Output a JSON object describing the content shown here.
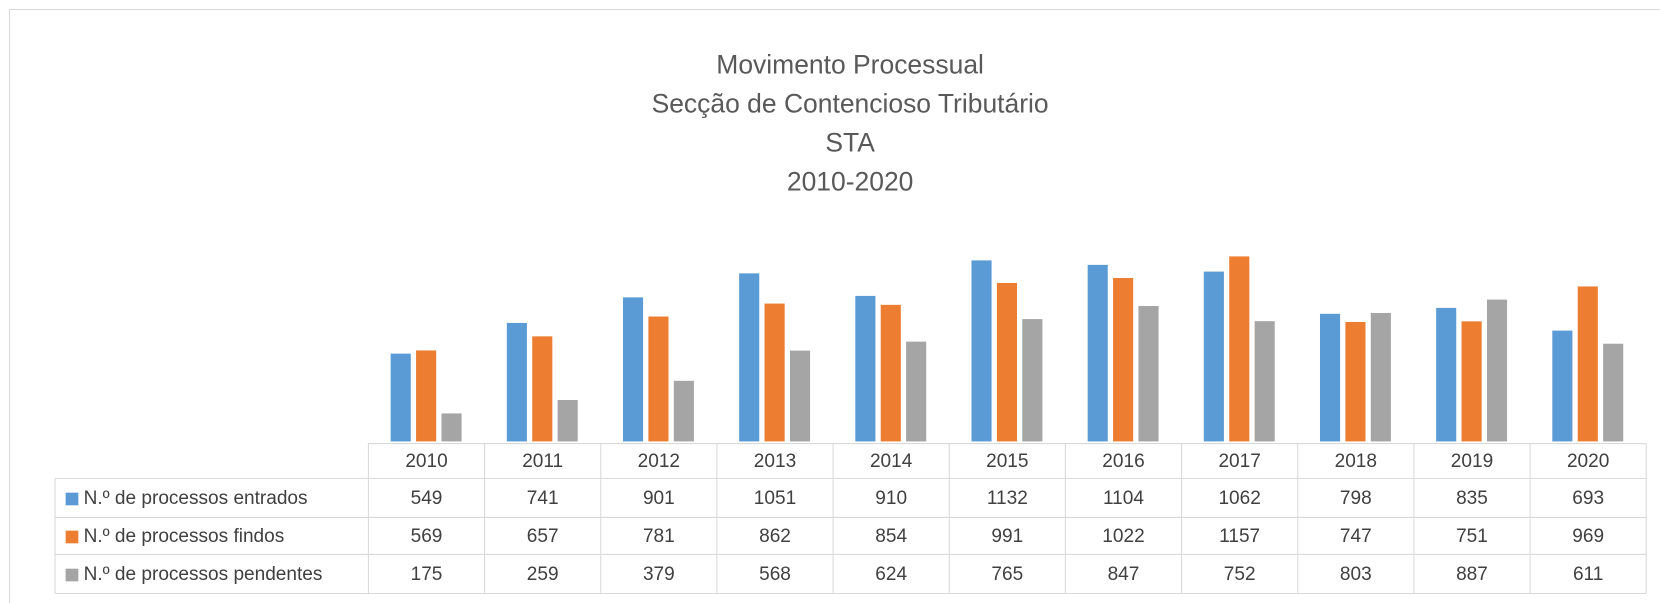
{
  "chart_data": {
    "type": "bar",
    "title_lines": [
      "Movimento Processual",
      "Secção de Contencioso Tributário",
      "STA",
      "2010-2020"
    ],
    "categories": [
      "2010",
      "2011",
      "2012",
      "2013",
      "2014",
      "2015",
      "2016",
      "2017",
      "2018",
      "2019",
      "2020"
    ],
    "series": [
      {
        "name": "N.º de processos entrados",
        "color": "#5b9bd5",
        "values": [
          549,
          741,
          901,
          1051,
          910,
          1132,
          1104,
          1062,
          798,
          835,
          693
        ]
      },
      {
        "name": "N.º de processos findos",
        "color": "#ed7d31",
        "values": [
          569,
          657,
          781,
          862,
          854,
          991,
          1022,
          1157,
          747,
          751,
          969
        ]
      },
      {
        "name": "N.º de processos pendentes",
        "color": "#a5a5a5",
        "values": [
          175,
          259,
          379,
          568,
          624,
          765,
          847,
          752,
          803,
          887,
          611
        ]
      }
    ],
    "ylim": [
      0,
      1400
    ]
  }
}
